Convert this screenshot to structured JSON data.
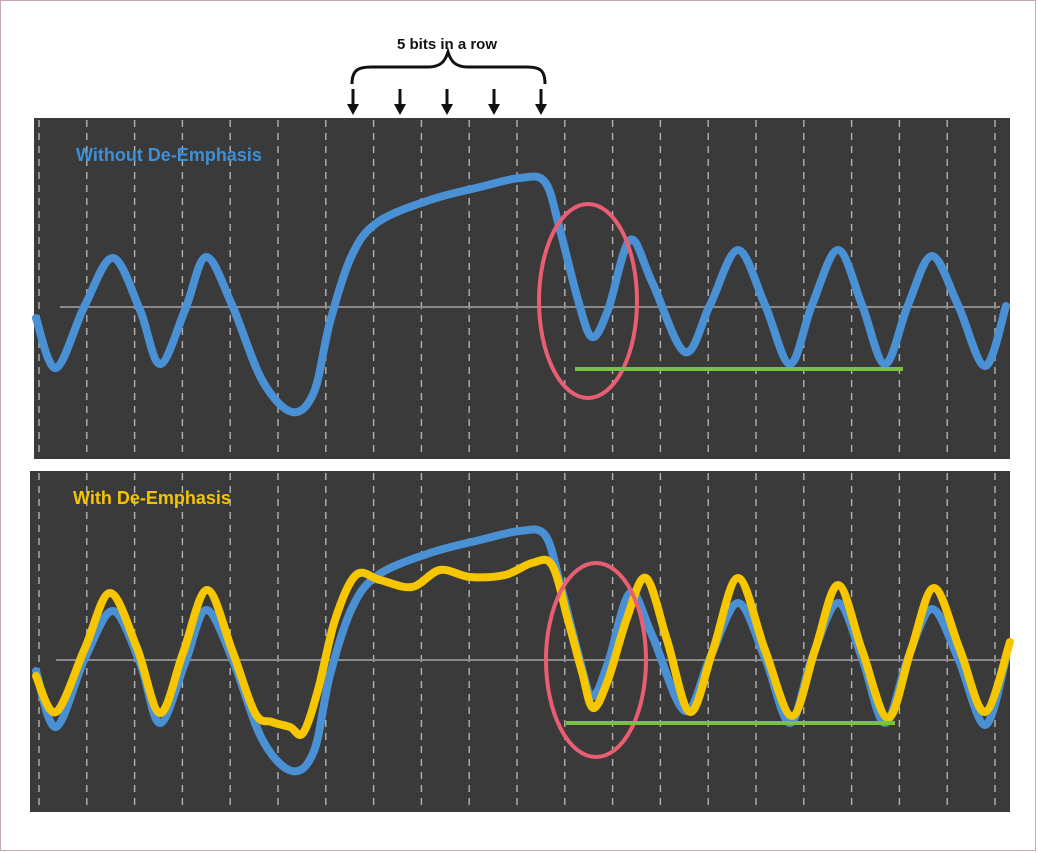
{
  "header": {
    "label": "5 bits in a row",
    "arrow_count": 5
  },
  "panels": [
    {
      "title": "Without De-Emphasis",
      "series": [
        "without"
      ]
    },
    {
      "title": "With De-Emphasis",
      "series": [
        "without",
        "with"
      ]
    }
  ],
  "colors": {
    "panel_background": "#3a3a3a",
    "without_de_emphasis": "#4a90d4",
    "with_de_emphasis": "#f6c700",
    "highlight_ellipse": "#ea5e74",
    "level_marker": "#7ac043",
    "midline": "#8a8a8a"
  },
  "icons": [
    "brace-icon",
    "down-arrow-icon"
  ]
}
